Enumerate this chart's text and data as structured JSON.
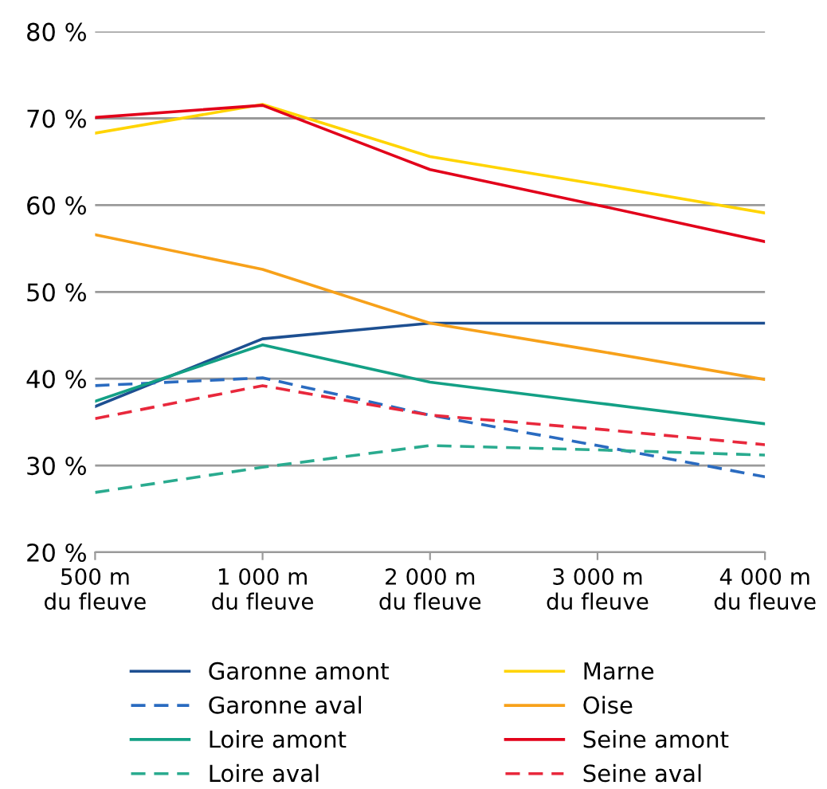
{
  "chart_data": {
    "type": "line",
    "categories": [
      "500 m\ndu fleuve",
      "1 000 m\ndu fleuve",
      "2 000 m\ndu fleuve",
      "3 000 m\ndu fleuve",
      "4 000 m\ndu fleuve"
    ],
    "ylim": [
      20,
      80
    ],
    "yticks": [
      {
        "value": 20,
        "label": "20 %"
      },
      {
        "value": 30,
        "label": "30 %"
      },
      {
        "value": 40,
        "label": "40 %"
      },
      {
        "value": 50,
        "label": "50 %"
      },
      {
        "value": 60,
        "label": "60 %"
      },
      {
        "value": 70,
        "label": "70 %"
      },
      {
        "value": 80,
        "label": "80 %"
      }
    ],
    "grid": "y",
    "legend": "bottom",
    "series": [
      {
        "name": "Garonne amont",
        "color": "#1d4f91",
        "line_style": "solid",
        "values": [
          36.8,
          44.6,
          46.4,
          46.4,
          46.4
        ]
      },
      {
        "name": "Garonne aval",
        "color": "#2a6bc0",
        "line_style": "dashed",
        "values": [
          39.2,
          40.1,
          35.8,
          32.3,
          28.7
        ]
      },
      {
        "name": "Loire amont",
        "color": "#13a085",
        "line_style": "solid",
        "values": [
          37.4,
          43.9,
          39.6,
          37.2,
          34.8
        ]
      },
      {
        "name": "Loire aval",
        "color": "#2aab8f",
        "line_style": "dashed",
        "values": [
          26.9,
          29.8,
          32.3,
          31.8,
          31.2
        ]
      },
      {
        "name": "Marne",
        "color": "#ffd400",
        "line_style": "solid",
        "values": [
          68.3,
          71.6,
          65.6,
          62.4,
          59.1
        ]
      },
      {
        "name": "Oise",
        "color": "#f7a11a",
        "line_style": "solid",
        "values": [
          56.6,
          52.6,
          46.4,
          43.2,
          39.9
        ]
      },
      {
        "name": "Seine amont",
        "color": "#e2001a",
        "line_style": "solid",
        "values": [
          70.1,
          71.5,
          64.1,
          60.0,
          55.8
        ]
      },
      {
        "name": "Seine aval",
        "color": "#e8283c",
        "line_style": "dashed",
        "values": [
          35.4,
          39.2,
          35.8,
          34.2,
          32.4
        ]
      }
    ]
  }
}
